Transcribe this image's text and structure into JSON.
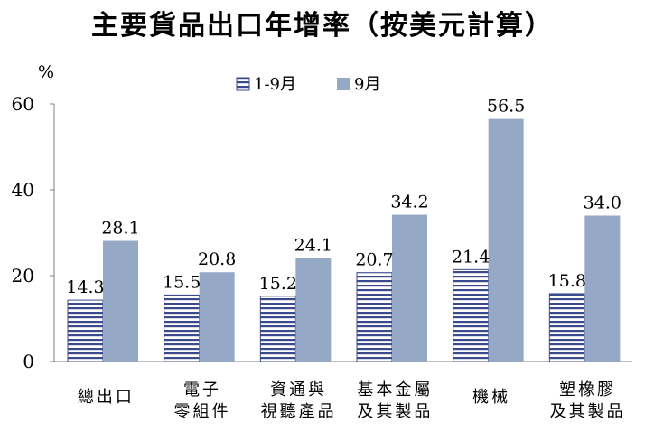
{
  "chart_data": {
    "type": "bar",
    "title": "主要貨品出口年增率（按美元計算）",
    "ylabel": "%",
    "ylim": [
      0,
      60
    ],
    "yticks": [
      "0",
      "20",
      "40",
      "60"
    ],
    "legend_position": "top-center",
    "grid": false,
    "categories": [
      [
        "總出口"
      ],
      [
        "電子",
        "零組件"
      ],
      [
        "資通與",
        "視聽產品"
      ],
      [
        "基本金屬",
        "及其製品"
      ],
      [
        "機械"
      ],
      [
        "塑橡膠",
        "及其製品"
      ]
    ],
    "series": [
      {
        "name": "1-9月",
        "values": [
          14.3,
          15.5,
          15.2,
          20.7,
          21.4,
          15.8
        ],
        "labels": [
          "14.3",
          "15.5",
          "15.2",
          "20.7",
          "21.4",
          "15.8"
        ],
        "color": "#3b4a8c",
        "pattern": "horizontal-stripes"
      },
      {
        "name": "9月",
        "values": [
          28.1,
          20.8,
          24.1,
          34.2,
          56.5,
          34.0
        ],
        "labels": [
          "28.1",
          "20.8",
          "24.1",
          "34.2",
          "56.5",
          "34.0"
        ],
        "color": "#95a9c6",
        "pattern": "solid"
      }
    ]
  }
}
